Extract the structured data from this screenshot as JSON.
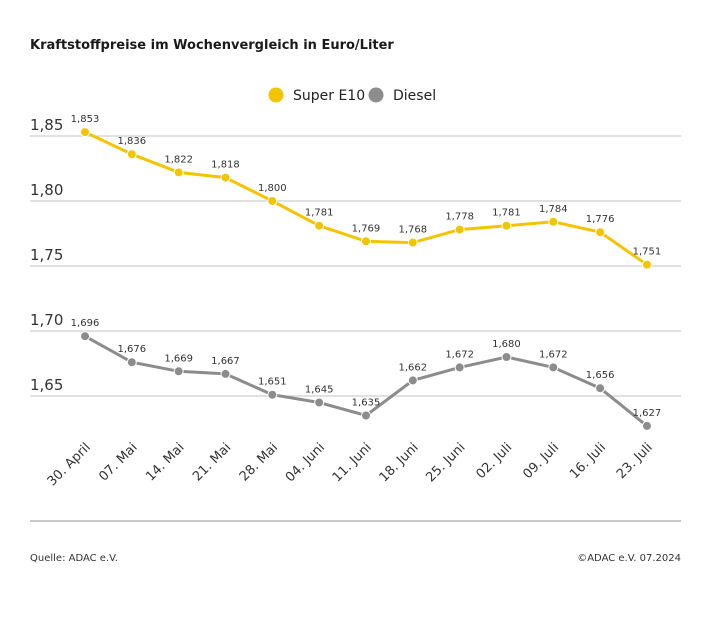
{
  "chart_data": {
    "type": "line",
    "title": "Kraftstoffpreise im Wochenvergleich in Euro/Liter",
    "categories": [
      "30. April",
      "07. Mai",
      "14. Mai",
      "21. Mai",
      "28. Mai",
      "04. Juni",
      "11. Juni",
      "18. Juni",
      "25. Juni",
      "02. Juli",
      "09. Juli",
      "16. Juli",
      "23. Juli"
    ],
    "series": [
      {
        "name": "Super E10",
        "color": "#f5c400",
        "values": [
          1.853,
          1.836,
          1.822,
          1.818,
          1.8,
          1.781,
          1.769,
          1.768,
          1.778,
          1.781,
          1.784,
          1.776,
          1.751
        ],
        "labels": [
          "1,853",
          "1,836",
          "1,822",
          "1,818",
          "1,800",
          "1,781",
          "1,769",
          "1,768",
          "1,778",
          "1,781",
          "1,784",
          "1,776",
          "1,751"
        ]
      },
      {
        "name": "Diesel",
        "color": "#8c8c8c",
        "values": [
          1.696,
          1.676,
          1.669,
          1.667,
          1.651,
          1.645,
          1.635,
          1.662,
          1.672,
          1.68,
          1.672,
          1.656,
          1.627
        ],
        "labels": [
          "1,696",
          "1,676",
          "1,669",
          "1,667",
          "1,651",
          "1,645",
          "1,635",
          "1,662",
          "1,672",
          "1,680",
          "1,672",
          "1,656",
          "1,627"
        ]
      }
    ],
    "yticks": [
      1.85,
      1.8,
      1.75,
      1.7,
      1.65
    ],
    "ytick_labels": [
      "1,85",
      "1,80",
      "1,75",
      "1,70",
      "1,65"
    ],
    "grid": true,
    "legend": "top-center",
    "xlabel": "",
    "ylabel": ""
  },
  "footer": {
    "source": "Quelle: ADAC e.V.",
    "copyright": "©ADAC e.V. 07.2024"
  }
}
